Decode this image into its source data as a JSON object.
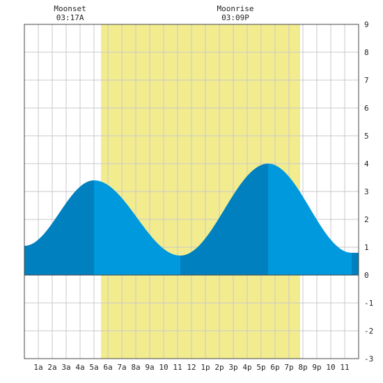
{
  "chart_data": {
    "type": "area",
    "title": "",
    "xlabel": "",
    "ylabel": "",
    "x_tick_labels": [
      "1a",
      "2a",
      "3a",
      "4a",
      "5a",
      "6a",
      "7a",
      "8a",
      "9a",
      "10",
      "11",
      "12",
      "1p",
      "2p",
      "3p",
      "4p",
      "5p",
      "6p",
      "7p",
      "8p",
      "9p",
      "10",
      "11"
    ],
    "x_range_hours": [
      0,
      24
    ],
    "ylim": [
      -3,
      9
    ],
    "y_ticks": [
      -3,
      -2,
      -1,
      0,
      1,
      2,
      3,
      4,
      5,
      6,
      7,
      8,
      9
    ],
    "y_axis_side": "right",
    "grid": true,
    "legend": "none",
    "daylight_hours": [
      5.5,
      19.8
    ],
    "tide_extrema": [
      {
        "type": "high",
        "hour": 5.0,
        "height": 3.4
      },
      {
        "type": "low",
        "hour": 11.2,
        "height": 0.7
      },
      {
        "type": "high",
        "hour": 17.5,
        "height": 4.0
      },
      {
        "type": "low",
        "hour": 23.5,
        "height": 0.8
      }
    ],
    "tide_start": {
      "hour": 0,
      "height": 1.05
    },
    "moon_events": [
      {
        "label": "Moonset",
        "time": "03:17A",
        "hour": 3.28
      },
      {
        "label": "Moonrise",
        "time": "03:09P",
        "hour": 15.15
      }
    ],
    "colors": {
      "daylight": "#f2ec8f",
      "tide_rising": "#0080bf",
      "tide_falling": "#0099dd",
      "grid": "#c8c8c8",
      "frame": "#444444"
    }
  }
}
